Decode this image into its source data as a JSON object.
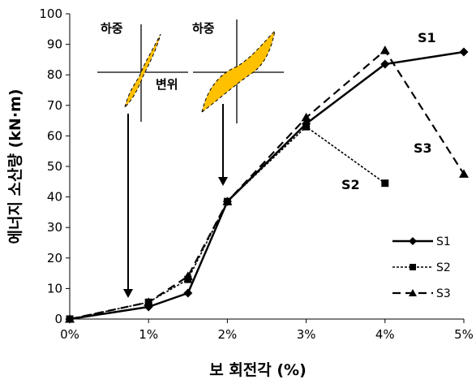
{
  "chart_data": {
    "type": "line",
    "xlabel": "보 회전각 (%)",
    "ylabel": "에너지 소산량 (kN·m)",
    "xlim": [
      0,
      5
    ],
    "ylim": [
      0,
      100
    ],
    "x_ticks": [
      "0%",
      "1%",
      "2%",
      "3%",
      "4%",
      "5%"
    ],
    "y_ticks": [
      "0",
      "10",
      "20",
      "30",
      "40",
      "50",
      "60",
      "70",
      "80",
      "90",
      "100"
    ],
    "grid": false,
    "legend_position": "bottom-right",
    "series": [
      {
        "name": "S1",
        "style": "solid",
        "marker": "diamond",
        "x": [
          0,
          1,
          1.5,
          2,
          3,
          4,
          5
        ],
        "y": [
          0,
          4,
          8.5,
          38.5,
          64,
          83.5,
          87.5
        ]
      },
      {
        "name": "S2",
        "style": "dotted",
        "marker": "square",
        "x": [
          0,
          1,
          1.5,
          2,
          3,
          4
        ],
        "y": [
          0,
          5.5,
          13,
          38.5,
          63,
          44.5
        ]
      },
      {
        "name": "S3",
        "style": "dashed",
        "marker": "triangle",
        "x": [
          0,
          1,
          1.5,
          2,
          3,
          4,
          5
        ],
        "y": [
          0,
          5.5,
          14,
          38.5,
          66,
          88,
          47.5
        ]
      }
    ],
    "annotations": {
      "series_labels": [
        "S1",
        "S2",
        "S3"
      ],
      "inset_load": "하중",
      "inset_disp": "변위"
    }
  },
  "colors": {
    "line": "#000000",
    "hysteresis_fill": "#FFC000"
  }
}
